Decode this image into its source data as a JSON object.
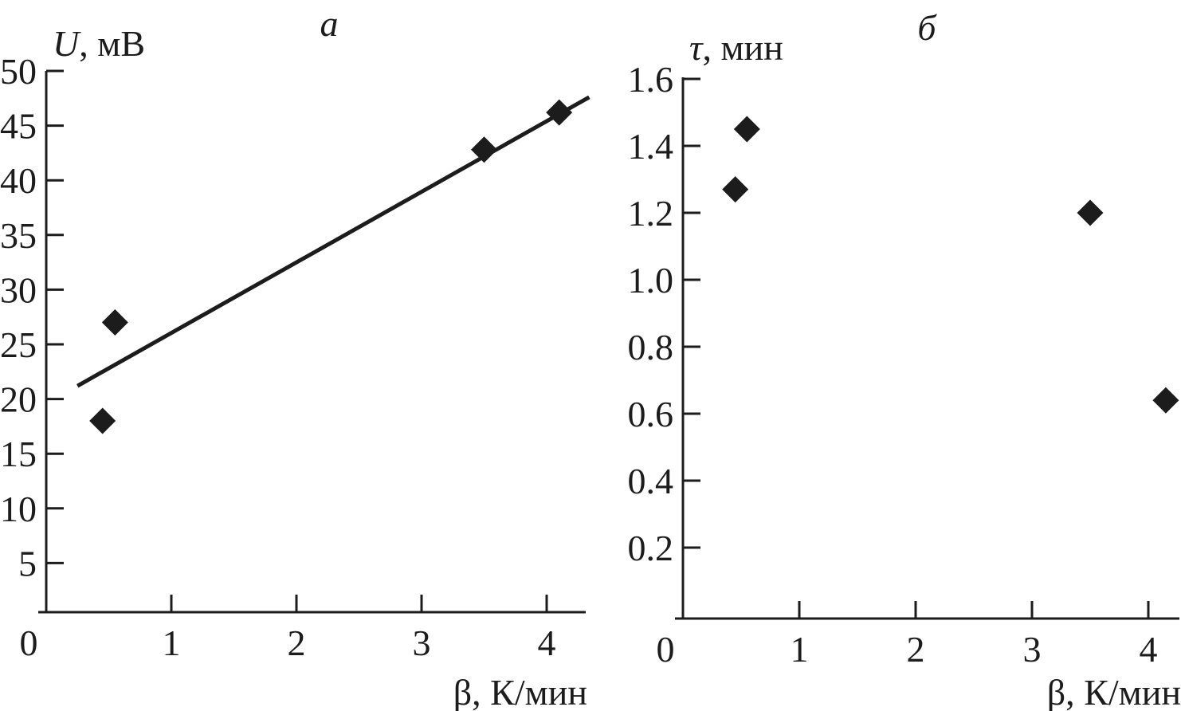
{
  "figure": {
    "background": "#ffffff",
    "ink_color": "#1c1c1c",
    "description": "Two-panel scatter figure"
  },
  "chart_data": [
    {
      "type": "scatter",
      "panel_label": "а",
      "title": "а",
      "xlabel": "β, К/мин",
      "ylabel": "U, мВ",
      "ylabel_parts": [
        {
          "text": "U",
          "style": "italic"
        },
        {
          "text": ", мВ",
          "style": "normal"
        }
      ],
      "xlabel_parts": [
        {
          "text": "β, К/мин",
          "style": "normal"
        }
      ],
      "xlim": [
        0,
        4.31
      ],
      "ylim": [
        0,
        50
      ],
      "x_tick_values": [
        0,
        1,
        2,
        3,
        4
      ],
      "x_tick_labels": [
        "0",
        "1",
        "2",
        "3",
        "4"
      ],
      "y_tick_values": [
        5,
        10,
        15,
        20,
        25,
        30,
        35,
        40,
        45,
        50
      ],
      "y_tick_labels": [
        "5",
        "10",
        "15",
        "20",
        "25",
        "30",
        "35",
        "40",
        "45",
        "50"
      ],
      "grid": false,
      "legend": false,
      "marker": "filled-diamond",
      "marker_color": "#1c1c1c",
      "points": [
        {
          "x": 0.55,
          "y": 27.0
        },
        {
          "x": 0.45,
          "y": 18.0
        },
        {
          "x": 3.5,
          "y": 42.8
        },
        {
          "x": 4.1,
          "y": 46.2
        }
      ],
      "trendline": {
        "x1": 0.25,
        "y1": 21.2,
        "x2": 4.34,
        "y2": 47.6
      }
    },
    {
      "type": "scatter",
      "panel_label": "б",
      "title": "б",
      "xlabel": "β, К/мин",
      "ylabel": "τ, мин",
      "ylabel_parts": [
        {
          "text": "τ",
          "style": "italic"
        },
        {
          "text": ", мин",
          "style": "normal"
        }
      ],
      "xlabel_parts": [
        {
          "text": "β, К/мин",
          "style": "normal"
        }
      ],
      "xlim": [
        0,
        4.27
      ],
      "ylim": [
        0,
        1.6
      ],
      "x_tick_values": [
        0,
        1,
        2,
        3,
        4
      ],
      "x_tick_labels": [
        "0",
        "1",
        "2",
        "3",
        "4"
      ],
      "y_tick_values": [
        0.2,
        0.4,
        0.6,
        0.8,
        1.0,
        1.2,
        1.4,
        1.6
      ],
      "y_tick_labels": [
        "0.2",
        "0.4",
        "0.6",
        "0.8",
        "1.0",
        "1.2",
        "1.4",
        "1.6"
      ],
      "grid": false,
      "legend": false,
      "marker": "filled-diamond",
      "marker_color": "#1c1c1c",
      "points": [
        {
          "x": 0.55,
          "y": 1.45
        },
        {
          "x": 0.45,
          "y": 1.27
        },
        {
          "x": 3.5,
          "y": 1.2
        },
        {
          "x": 4.15,
          "y": 0.64
        }
      ],
      "trendline": null
    }
  ]
}
